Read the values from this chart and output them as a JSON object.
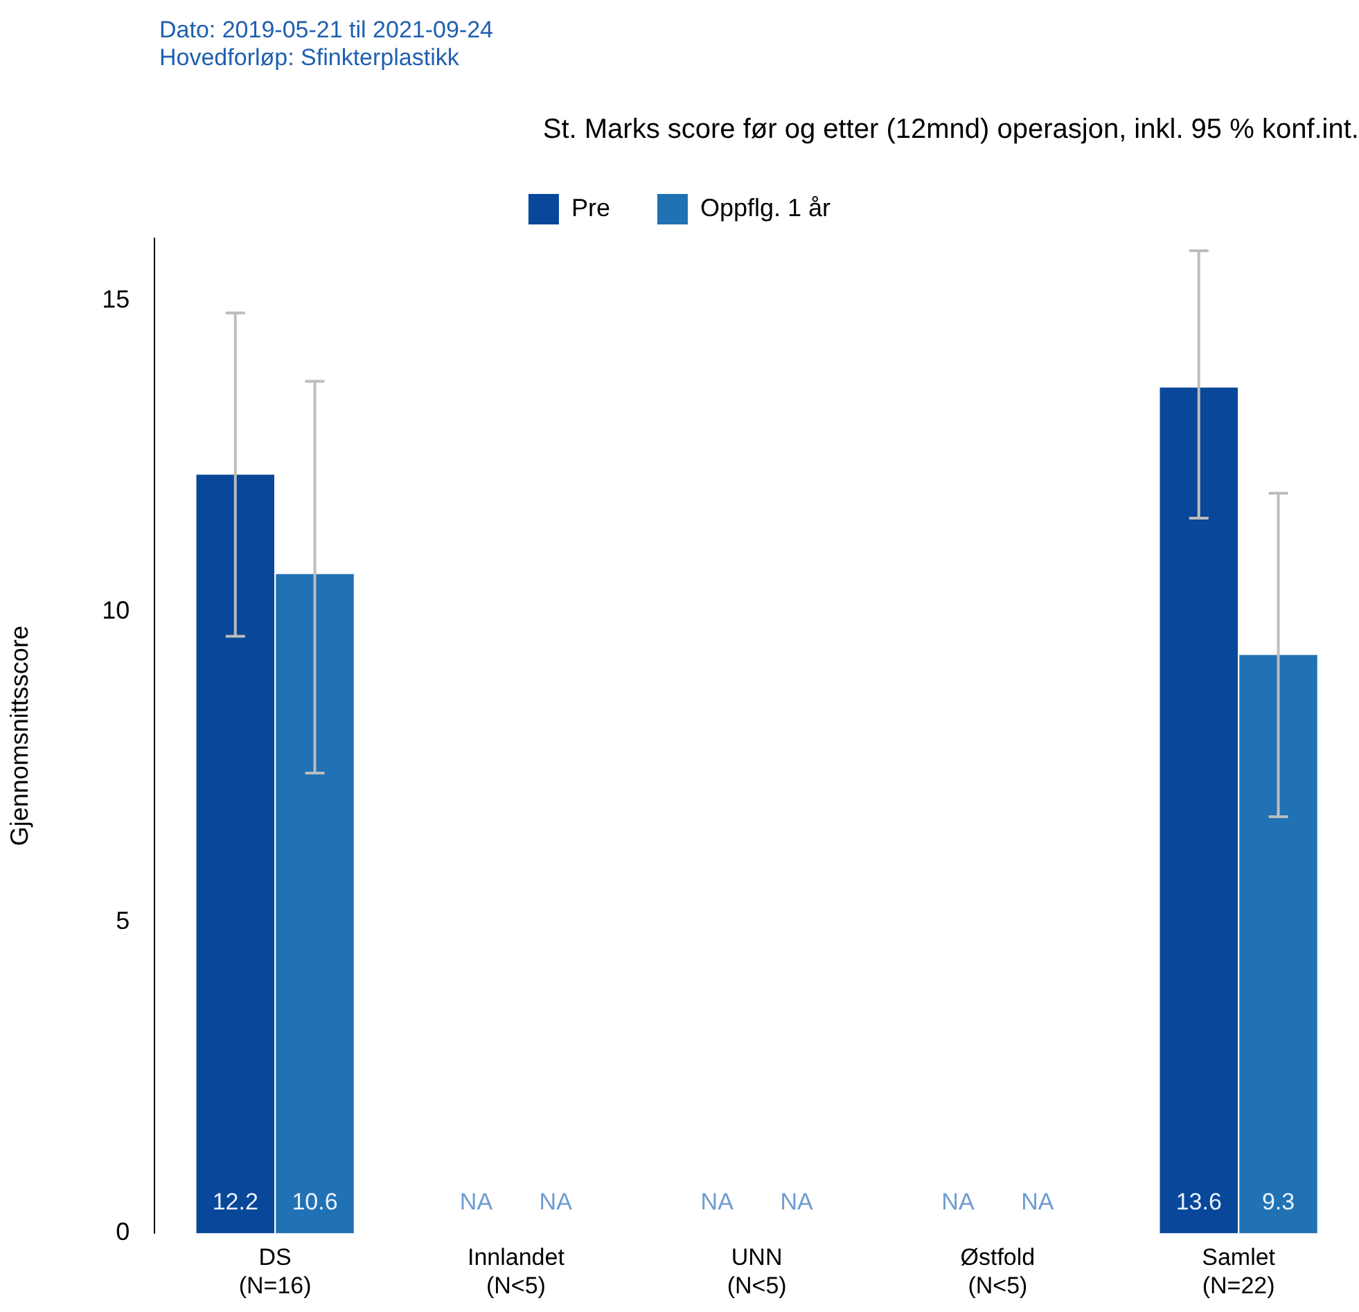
{
  "chart_data": {
    "type": "bar",
    "title": "St. Marks score før og etter (12mnd) operasjon, inkl. 95 % konf.int.",
    "ylabel": "Gjennomsnittsscore",
    "annotations": [
      "Dato: 2019-05-21 til 2021-09-24",
      "Hovedforløp: Sfinkterplastikk"
    ],
    "categories": [
      "DS\n(N=16)",
      "Innlandet\n(N<5)",
      "UNN\n(N<5)",
      "Østfold\n(N<5)",
      "Samlet\n(N=22)"
    ],
    "series": [
      {
        "name": "Pre",
        "color": "#08479a",
        "values": [
          12.2,
          null,
          null,
          null,
          13.6
        ],
        "errors": [
          [
            9.6,
            14.8
          ],
          null,
          null,
          null,
          [
            11.5,
            15.8
          ]
        ],
        "value_labels": [
          "12.2",
          "NA",
          "NA",
          "NA",
          "13.6"
        ]
      },
      {
        "name": "Oppflg. 1 år",
        "color": "#2171b5",
        "values": [
          10.6,
          null,
          null,
          null,
          9.3
        ],
        "errors": [
          [
            7.4,
            13.7
          ],
          null,
          null,
          null,
          [
            6.7,
            11.9
          ]
        ],
        "value_labels": [
          "10.6",
          "NA",
          "NA",
          "NA",
          "9.3"
        ]
      }
    ],
    "ylim": [
      0,
      16
    ],
    "yticks": [
      0,
      5,
      10,
      15
    ],
    "grid": false,
    "legend": "top"
  }
}
